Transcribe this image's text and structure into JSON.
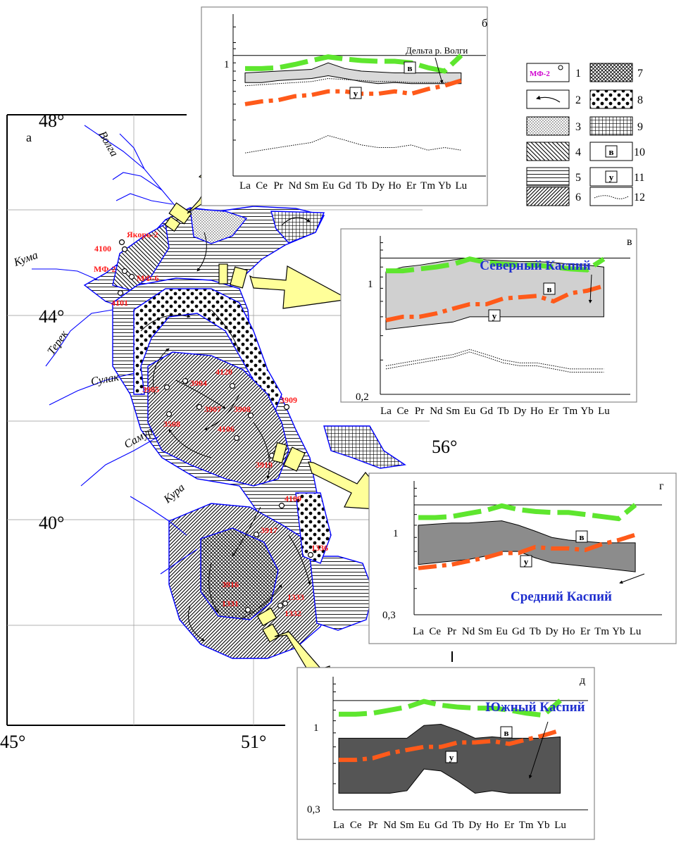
{
  "map": {
    "panel_label": "а",
    "lat_labels": [
      "48°",
      "44°",
      "40°"
    ],
    "lon_labels": [
      "45°",
      "51°",
      "56°"
    ],
    "rivers": [
      "Волга",
      "Кума",
      "Терек",
      "Сулак",
      "Самур",
      "Кура"
    ],
    "stations": [
      "Якорь-2",
      "4100",
      "МФ-2",
      "МФ-6",
      "4101",
      "3905",
      "3904",
      "4120",
      "3907",
      "3908",
      "3909",
      "3508",
      "4106",
      "3919",
      "4109",
      "3917",
      "1336",
      "3916",
      "1331",
      "1333",
      "1332"
    ],
    "colors": {
      "water": "#0000ff",
      "station_label": "#ff1a1a",
      "arrow_fill": "#ffff99"
    }
  },
  "legend": {
    "items": [
      {
        "num": "1",
        "symbol": "station",
        "text": "МФ-2"
      },
      {
        "num": "2",
        "symbol": "current-arrow"
      },
      {
        "num": "3",
        "symbol": "fine-dots"
      },
      {
        "num": "4",
        "symbol": "back-hatch"
      },
      {
        "num": "5",
        "symbol": "horizontal-lines"
      },
      {
        "num": "6",
        "symbol": "forward-hatch"
      },
      {
        "num": "7",
        "symbol": "cross-hatch"
      },
      {
        "num": "8",
        "symbol": "coarse-dots"
      },
      {
        "num": "9",
        "symbol": "grid"
      },
      {
        "num": "10",
        "symbol": "box-label",
        "text": "в"
      },
      {
        "num": "11",
        "symbol": "box-label",
        "text": "у"
      },
      {
        "num": "12",
        "symbol": "dotted-line"
      }
    ]
  },
  "chart_data": [
    {
      "panel": "б",
      "type": "line",
      "x": [
        "La",
        "Ce",
        "Pr",
        "Nd",
        "Sm",
        "Eu",
        "Gd",
        "Tb",
        "Dy",
        "Ho",
        "Er",
        "Tm",
        "Yb",
        "Lu"
      ],
      "yscale": "log",
      "ylim": [
        0.18,
        1.8
      ],
      "ytick_labels": [
        "1"
      ],
      "annotations": [
        "Дельта р. Волги"
      ],
      "box_labels": [
        "в",
        "у"
      ],
      "series": [
        {
          "style": "green-dash",
          "marker": "в",
          "values": [
            0.83,
            0.83,
            0.84,
            0.88,
            0.93,
            0.98,
            0.95,
            0.93,
            0.92,
            0.92,
            0.9,
            0.84,
            0.8,
            1.0
          ]
        },
        {
          "style": "orange-dashdot",
          "marker": "у",
          "values": [
            0.5,
            0.52,
            0.53,
            0.56,
            0.57,
            0.6,
            0.6,
            0.58,
            0.58,
            0.6,
            0.58,
            0.62,
            0.65,
            0.7
          ]
        },
        {
          "style": "gray-band",
          "low": [
            0.68,
            0.68,
            0.7,
            0.71,
            0.72,
            0.75,
            0.72,
            0.69,
            0.67,
            0.68,
            0.67,
            0.67,
            0.67,
            0.67
          ],
          "high": [
            0.78,
            0.79,
            0.8,
            0.81,
            0.82,
            0.9,
            0.83,
            0.8,
            0.79,
            0.78,
            0.78,
            0.78,
            0.78,
            0.78
          ]
        },
        {
          "style": "dotted-upper",
          "values": [
            0.65,
            0.66,
            0.67,
            0.68,
            0.69,
            0.72,
            0.71,
            0.7,
            0.69,
            0.69,
            0.68,
            0.68,
            0.68,
            0.69
          ]
        },
        {
          "style": "dotted-lower",
          "values": [
            0.25,
            0.26,
            0.27,
            0.28,
            0.29,
            0.32,
            0.3,
            0.28,
            0.27,
            0.27,
            0.28,
            0.26,
            0.27,
            0.26
          ]
        }
      ]
    },
    {
      "panel": "в",
      "type": "line",
      "title": "Северный Каспий",
      "x": [
        "La",
        "Ce",
        "Pr",
        "Nd",
        "Sm",
        "Eu",
        "Gd",
        "Tb",
        "Dy",
        "Ho",
        "Er",
        "Tm",
        "Yb",
        "Lu"
      ],
      "yscale": "log",
      "ylim": [
        0.2,
        1.3
      ],
      "ytick_labels": [
        "1",
        "0,2"
      ],
      "box_labels": [
        "в",
        "у"
      ],
      "series": [
        {
          "style": "green-dash",
          "marker": "в",
          "values": [
            0.86,
            0.86,
            0.88,
            0.9,
            0.93,
            0.99,
            0.95,
            0.93,
            0.92,
            0.92,
            0.9,
            0.88,
            0.87,
            0.99
          ]
        },
        {
          "style": "orange-dashdot",
          "marker": "у",
          "values": [
            0.48,
            0.5,
            0.5,
            0.52,
            0.55,
            0.58,
            0.58,
            0.62,
            0.63,
            0.64,
            0.6,
            0.66,
            0.68,
            0.72
          ]
        },
        {
          "style": "gray-band",
          "low": [
            0.43,
            0.44,
            0.45,
            0.46,
            0.47,
            0.5,
            0.5,
            0.5,
            0.5,
            0.5,
            0.5,
            0.5,
            0.5,
            0.5
          ],
          "high": [
            0.85,
            0.9,
            0.92,
            0.95,
            0.98,
            1.0,
            0.98,
            0.97,
            0.96,
            0.96,
            0.95,
            0.93,
            0.92,
            0.9
          ]
        },
        {
          "style": "dotted-upper",
          "values": [
            0.28,
            0.29,
            0.3,
            0.31,
            0.32,
            0.34,
            0.32,
            0.3,
            0.29,
            0.29,
            0.28,
            0.27,
            0.27,
            0.27
          ]
        },
        {
          "style": "dotted-lower",
          "values": [
            0.27,
            0.28,
            0.29,
            0.3,
            0.31,
            0.33,
            0.31,
            0.29,
            0.28,
            0.28,
            0.27,
            0.26,
            0.26,
            0.26
          ]
        }
      ]
    },
    {
      "panel": "г",
      "type": "line",
      "title": "Средний Каспий",
      "x": [
        "La",
        "Ce",
        "Pr",
        "Nd",
        "Sm",
        "Eu",
        "Gd",
        "Tb",
        "Dy",
        "Ho",
        "Er",
        "Tm",
        "Yb",
        "Lu"
      ],
      "yscale": "log",
      "ylim": [
        0.3,
        1.3
      ],
      "ytick_labels": [
        "1",
        "0,3"
      ],
      "box_labels": [
        "в",
        "у"
      ],
      "series": [
        {
          "style": "green-dash",
          "marker": "в",
          "values": [
            0.87,
            0.87,
            0.88,
            0.91,
            0.94,
            0.99,
            0.95,
            0.93,
            0.92,
            0.92,
            0.9,
            0.88,
            0.86,
            1.0
          ]
        },
        {
          "style": "orange-dashdot",
          "marker": "у",
          "values": [
            0.5,
            0.51,
            0.52,
            0.54,
            0.56,
            0.59,
            0.59,
            0.63,
            0.62,
            0.62,
            0.61,
            0.65,
            0.68,
            0.72
          ]
        },
        {
          "style": "gray-band",
          "low": [
            0.52,
            0.53,
            0.54,
            0.55,
            0.57,
            0.6,
            0.6,
            0.56,
            0.53,
            0.52,
            0.51,
            0.5,
            0.49,
            0.48
          ],
          "high": [
            0.8,
            0.81,
            0.82,
            0.82,
            0.83,
            0.84,
            0.8,
            0.75,
            0.7,
            0.68,
            0.67,
            0.66,
            0.66,
            0.66
          ]
        }
      ]
    },
    {
      "panel": "д",
      "type": "line",
      "title": "Южный Каспий",
      "x": [
        "La",
        "Ce",
        "Pr",
        "Nd",
        "Sm",
        "Eu",
        "Gd",
        "Tb",
        "Dy",
        "Ho",
        "Er",
        "Tm",
        "Yb",
        "Lu"
      ],
      "yscale": "log",
      "ylim": [
        0.3,
        1.3
      ],
      "ytick_labels": [
        "1",
        "0,3"
      ],
      "box_labels": [
        "в",
        "у"
      ],
      "series": [
        {
          "style": "green-dash",
          "marker": "в",
          "values": [
            0.86,
            0.86,
            0.87,
            0.9,
            0.93,
            0.99,
            0.95,
            0.93,
            0.92,
            0.92,
            0.9,
            0.87,
            0.85,
            1.0
          ]
        },
        {
          "style": "orange-dashdot",
          "marker": "у",
          "values": [
            0.52,
            0.52,
            0.53,
            0.56,
            0.58,
            0.6,
            0.6,
            0.63,
            0.63,
            0.64,
            0.62,
            0.65,
            0.68,
            0.72
          ]
        },
        {
          "style": "gray-band",
          "low": [
            0.36,
            0.36,
            0.36,
            0.36,
            0.37,
            0.47,
            0.46,
            0.41,
            0.36,
            0.37,
            0.36,
            0.36,
            0.36,
            0.36
          ],
          "high": [
            0.66,
            0.66,
            0.66,
            0.66,
            0.66,
            0.76,
            0.77,
            0.72,
            0.66,
            0.67,
            0.66,
            0.66,
            0.66,
            0.67
          ]
        }
      ]
    }
  ]
}
